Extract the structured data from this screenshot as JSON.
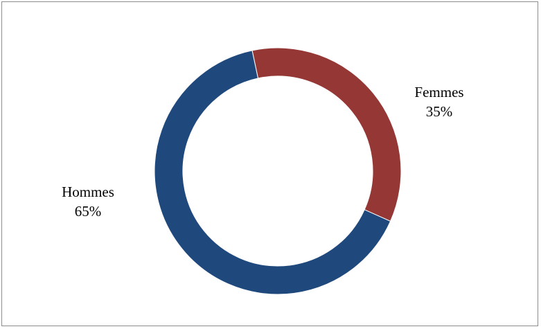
{
  "chart_data": {
    "type": "pie",
    "style": "donut",
    "title": "",
    "legend": "none",
    "slices": [
      {
        "name": "Femmes",
        "value": 35,
        "value_label": "35%",
        "color": "#953735"
      },
      {
        "name": "Hommes",
        "value": 65,
        "value_label": "65%",
        "color": "#1F497D"
      }
    ]
  }
}
